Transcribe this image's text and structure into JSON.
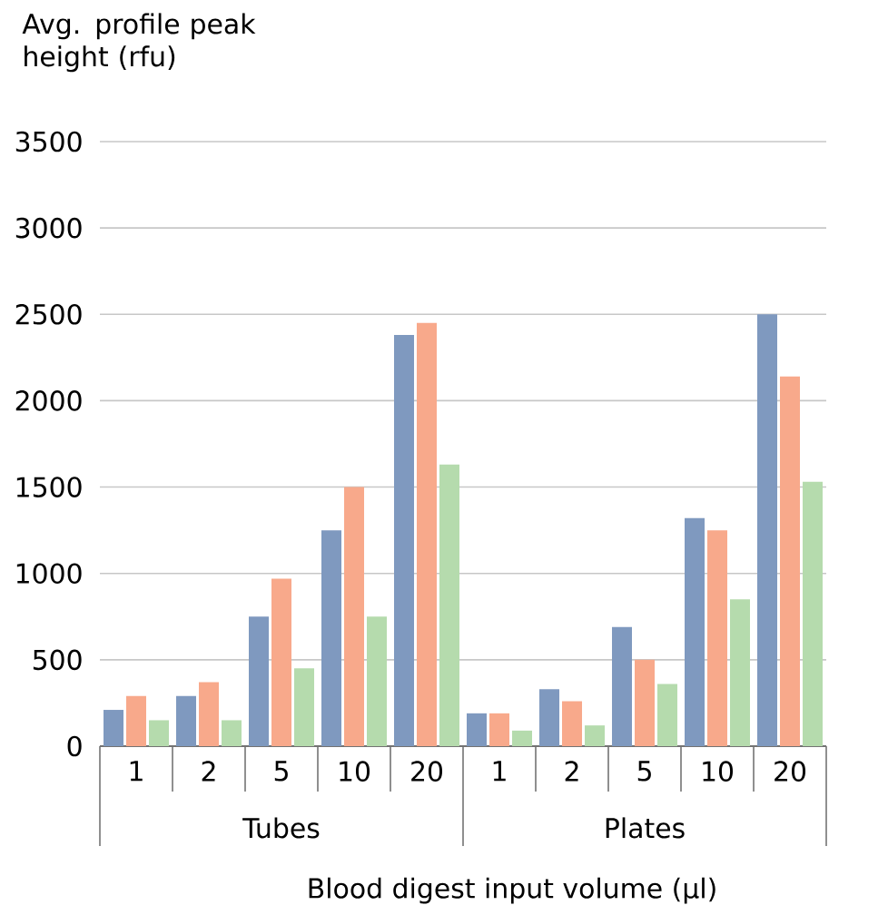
{
  "chart_data": {
    "type": "bar",
    "ylabel": "Avg. profile peak height (rfu)",
    "xlabel": "Blood digest input volume (µl)",
    "categories": [
      "1",
      "2",
      "5",
      "10",
      "20",
      "1",
      "2",
      "5",
      "10",
      "20"
    ],
    "series": [
      {
        "color": "#7f99bf",
        "values": [
          210,
          290,
          750,
          1250,
          2380,
          190,
          330,
          690,
          1320,
          2500
        ]
      },
      {
        "color": "#f8a98b",
        "values": [
          290,
          370,
          970,
          1500,
          2450,
          190,
          260,
          500,
          1250,
          2140
        ]
      },
      {
        "color": "#b5dbad",
        "values": [
          150,
          150,
          450,
          750,
          1630,
          90,
          120,
          360,
          850,
          1530
        ]
      }
    ],
    "annotations": [
      "Tubes",
      "Plates"
    ],
    "ylim": [
      0,
      3500
    ],
    "yticks": [
      0,
      500,
      1000,
      1500,
      2000,
      2500,
      3000,
      3500
    ],
    "grid": "y"
  }
}
